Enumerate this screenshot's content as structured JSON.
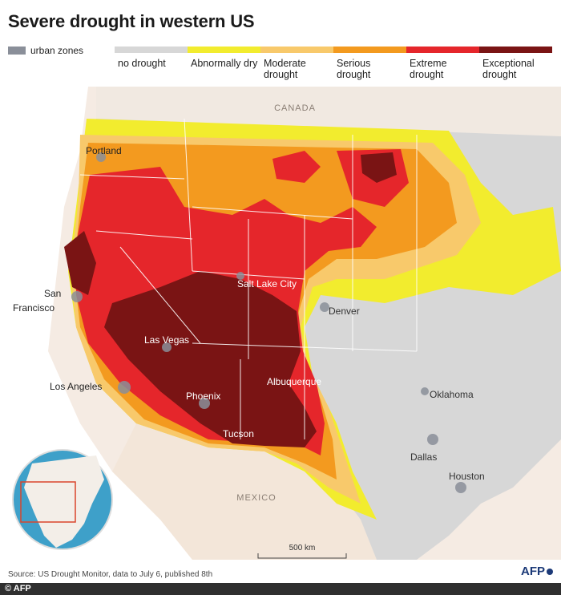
{
  "title": "Severe drought in western US",
  "urban_legend": {
    "label": "urban zones",
    "color": "#8a8f99"
  },
  "legend": [
    {
      "label": "no drought",
      "color": "#d7d7d7"
    },
    {
      "label": "Abnormally dry",
      "color": "#f2ec2e"
    },
    {
      "label": "Moderate drought",
      "color": "#f8c96b"
    },
    {
      "label": "Serious drought",
      "color": "#f39a1f"
    },
    {
      "label": "Extreme drought",
      "color": "#e5262b"
    },
    {
      "label": "Exceptional drought",
      "color": "#7a1414"
    }
  ],
  "map": {
    "countries": {
      "canada": "CANADA",
      "mexico": "MEXICO"
    },
    "cities": {
      "portland": "Portland",
      "san_francisco_1": "San",
      "san_francisco_2": "Francisco",
      "salt_lake_city": "Salt Lake City",
      "denver": "Denver",
      "las_vegas": "Las Vegas",
      "los_angeles": "Los Angeles",
      "albuquerque": "Albuquerque",
      "phoenix": "Phoenix",
      "oklahoma": "Oklahoma",
      "tucson": "Tucson",
      "dallas": "Dallas",
      "houston": "Houston"
    },
    "scale": "500 km"
  },
  "source": "Source: US Drought Monitor, data to July 6, published 8th",
  "credit": "© AFP",
  "logo": "AFP"
}
